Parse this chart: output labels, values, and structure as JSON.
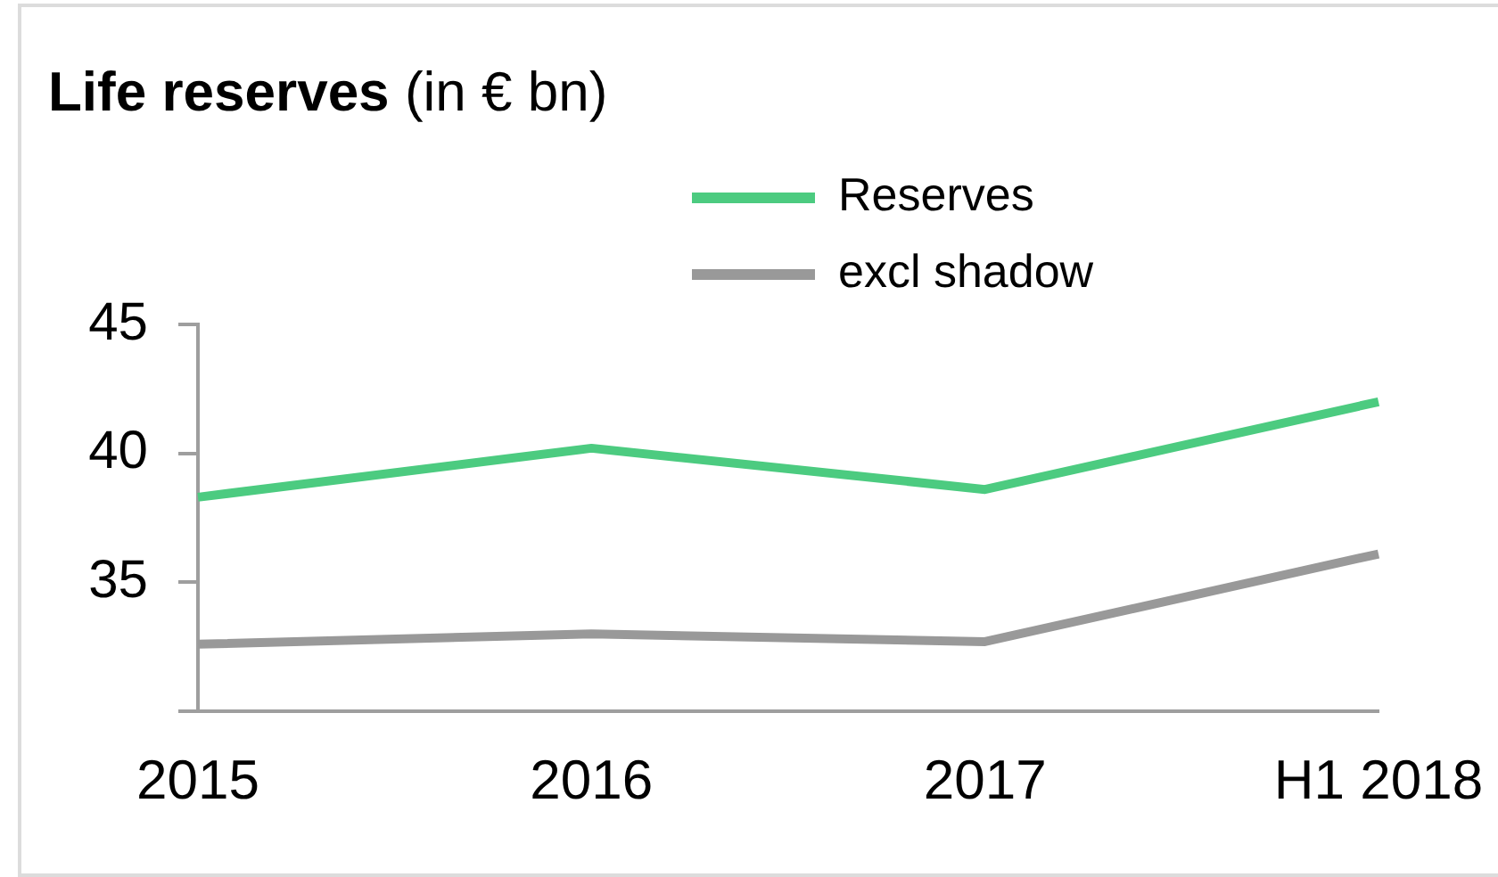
{
  "chart_data": {
    "type": "line",
    "title": "Life reserves",
    "subtitle": "(in € bn)",
    "categories": [
      "2015",
      "2016",
      "2017",
      "H1 2018"
    ],
    "series": [
      {
        "name": "Reserves",
        "color": "#4ccb80",
        "values": [
          38.3,
          40.2,
          38.6,
          42.0
        ]
      },
      {
        "name": "excl shadow",
        "color": "#999999",
        "values": [
          32.6,
          33.0,
          32.7,
          36.1
        ]
      }
    ],
    "ylim": [
      30,
      45
    ],
    "yticks": [
      {
        "value": 30,
        "label": null
      },
      35,
      40,
      45
    ],
    "legend": "top"
  }
}
